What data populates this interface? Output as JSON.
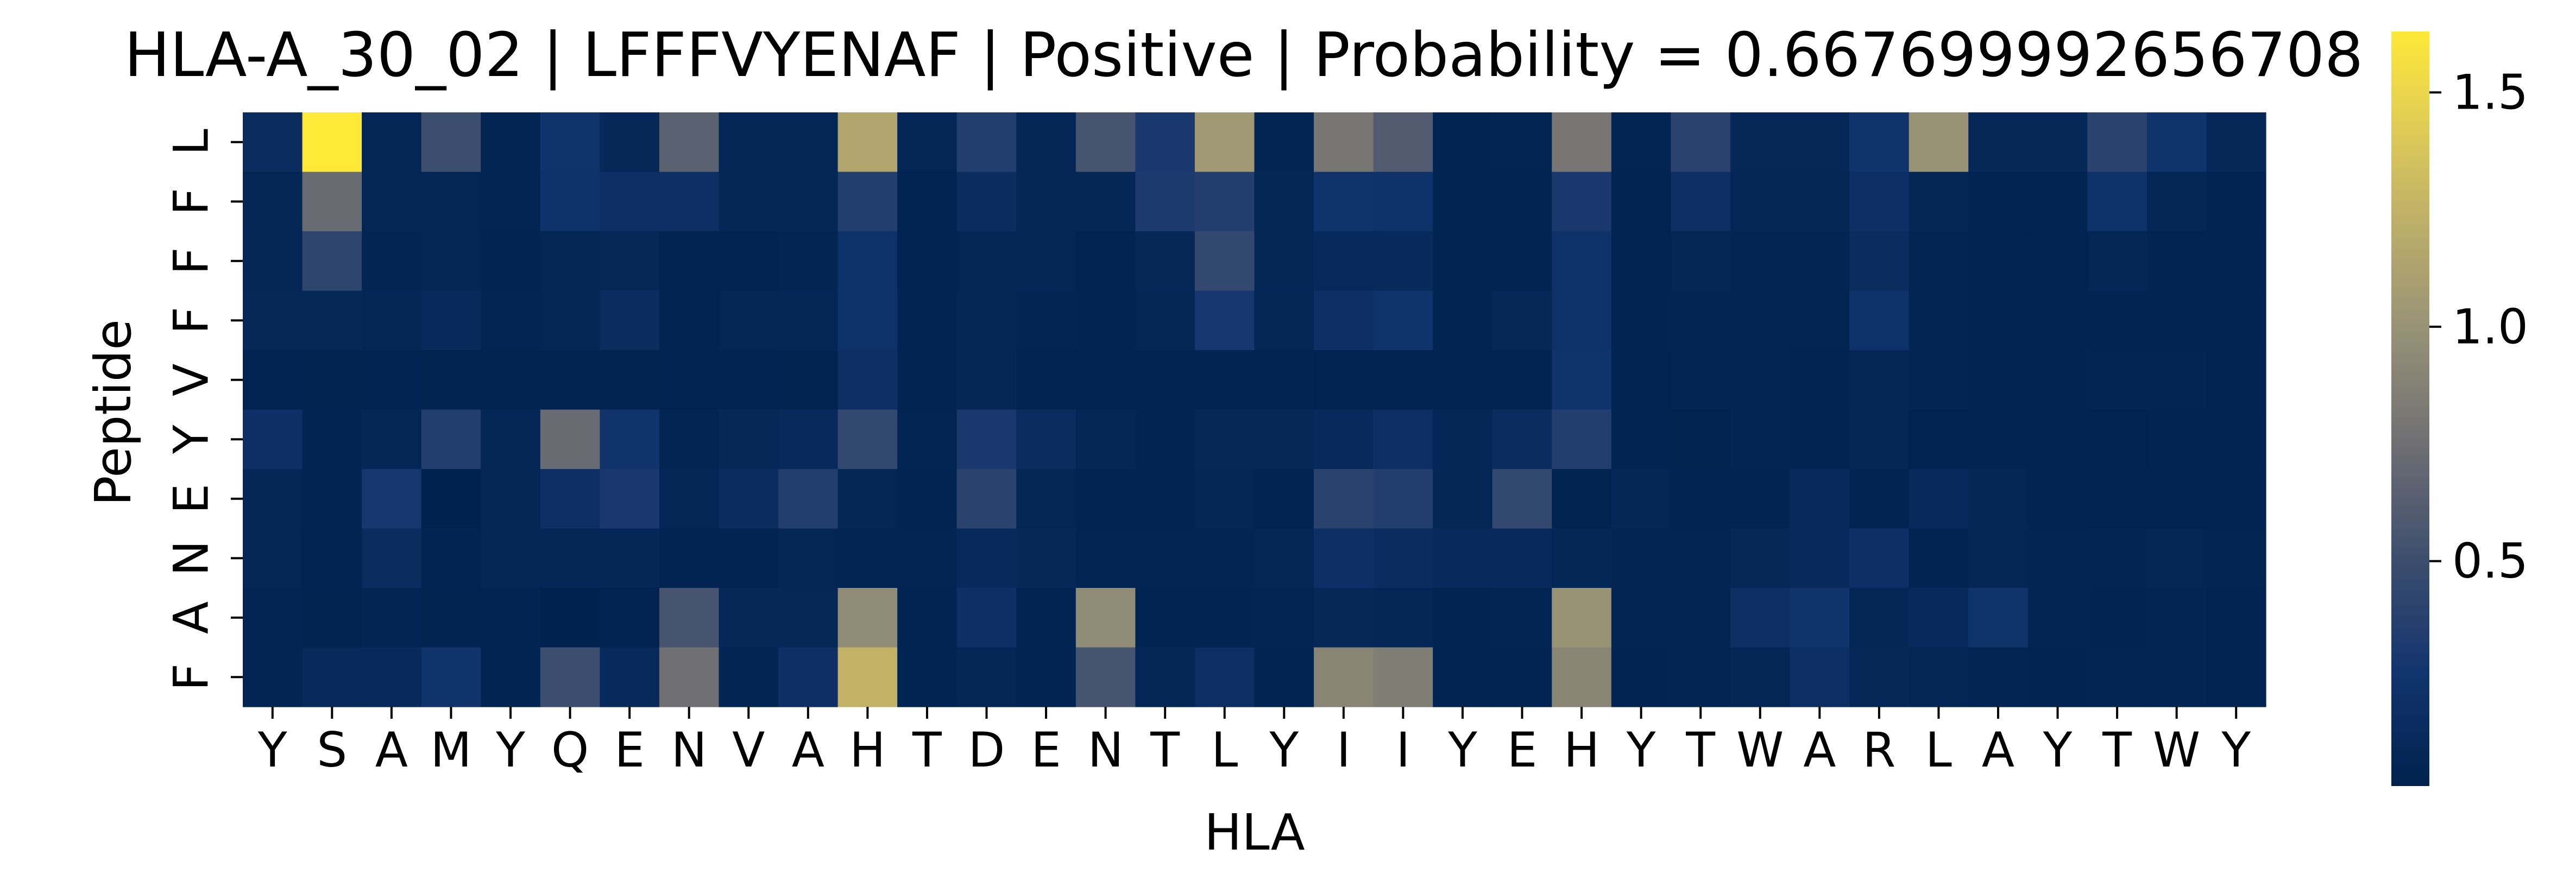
{
  "chart_data": {
    "type": "heatmap",
    "title": "HLA-A_30_02 | LFFFVYENAF | Positive | Probability = 0.667699992656708",
    "xlabel": "HLA",
    "ylabel": "Peptide",
    "x_categories": [
      "Y",
      "S",
      "A",
      "M",
      "Y",
      "Q",
      "E",
      "N",
      "V",
      "A",
      "H",
      "T",
      "D",
      "E",
      "N",
      "T",
      "L",
      "Y",
      "I",
      "I",
      "Y",
      "E",
      "H",
      "Y",
      "T",
      "W",
      "A",
      "R",
      "L",
      "A",
      "Y",
      "T",
      "W",
      "Y"
    ],
    "y_categories": [
      "L",
      "F",
      "F",
      "F",
      "V",
      "Y",
      "E",
      "N",
      "A",
      "F"
    ],
    "colorbar": {
      "colormap": "cividis",
      "vmin": 0.02,
      "vmax": 1.63,
      "ticks": [
        0.5,
        1.0,
        1.5
      ],
      "tick_labels": [
        "0.5",
        "1.0",
        "1.5"
      ]
    },
    "grid": false,
    "values": [
      [
        0.15,
        1.63,
        0.08,
        0.5,
        0.06,
        0.25,
        0.1,
        0.65,
        0.08,
        0.08,
        1.15,
        0.08,
        0.35,
        0.08,
        0.55,
        0.3,
        1.05,
        0.06,
        0.8,
        0.6,
        0.05,
        0.06,
        0.8,
        0.06,
        0.4,
        0.1,
        0.1,
        0.25,
        1.0,
        0.1,
        0.1,
        0.4,
        0.25,
        0.1
      ],
      [
        0.07,
        0.72,
        0.07,
        0.08,
        0.06,
        0.22,
        0.18,
        0.18,
        0.08,
        0.08,
        0.35,
        0.04,
        0.15,
        0.08,
        0.08,
        0.32,
        0.35,
        0.08,
        0.25,
        0.22,
        0.05,
        0.05,
        0.3,
        0.04,
        0.18,
        0.08,
        0.07,
        0.2,
        0.07,
        0.05,
        0.05,
        0.22,
        0.08,
        0.05
      ],
      [
        0.08,
        0.42,
        0.06,
        0.07,
        0.05,
        0.08,
        0.1,
        0.05,
        0.05,
        0.06,
        0.22,
        0.04,
        0.08,
        0.08,
        0.04,
        0.1,
        0.45,
        0.08,
        0.12,
        0.12,
        0.05,
        0.05,
        0.22,
        0.04,
        0.07,
        0.06,
        0.06,
        0.15,
        0.06,
        0.04,
        0.04,
        0.08,
        0.05,
        0.05
      ],
      [
        0.1,
        0.1,
        0.08,
        0.12,
        0.06,
        0.08,
        0.15,
        0.04,
        0.07,
        0.08,
        0.22,
        0.05,
        0.08,
        0.06,
        0.05,
        0.07,
        0.28,
        0.07,
        0.2,
        0.25,
        0.05,
        0.1,
        0.22,
        0.05,
        0.06,
        0.06,
        0.06,
        0.22,
        0.06,
        0.04,
        0.04,
        0.05,
        0.05,
        0.05
      ],
      [
        0.04,
        0.03,
        0.04,
        0.03,
        0.03,
        0.03,
        0.03,
        0.04,
        0.05,
        0.03,
        0.2,
        0.05,
        0.08,
        0.04,
        0.04,
        0.04,
        0.05,
        0.05,
        0.04,
        0.04,
        0.04,
        0.04,
        0.25,
        0.04,
        0.06,
        0.06,
        0.05,
        0.08,
        0.06,
        0.05,
        0.05,
        0.06,
        0.06,
        0.04
      ],
      [
        0.2,
        0.05,
        0.08,
        0.35,
        0.08,
        0.72,
        0.25,
        0.06,
        0.1,
        0.12,
        0.45,
        0.06,
        0.3,
        0.15,
        0.08,
        0.05,
        0.1,
        0.1,
        0.12,
        0.18,
        0.08,
        0.15,
        0.35,
        0.05,
        0.03,
        0.06,
        0.04,
        0.08,
        0.04,
        0.04,
        0.04,
        0.04,
        0.05,
        0.05
      ],
      [
        0.08,
        0.05,
        0.28,
        0.02,
        0.07,
        0.2,
        0.3,
        0.08,
        0.15,
        0.35,
        0.08,
        0.05,
        0.4,
        0.08,
        0.05,
        0.05,
        0.08,
        0.05,
        0.4,
        0.35,
        0.08,
        0.45,
        0.03,
        0.07,
        0.05,
        0.05,
        0.12,
        0.05,
        0.12,
        0.08,
        0.05,
        0.04,
        0.04,
        0.05
      ],
      [
        0.08,
        0.04,
        0.15,
        0.05,
        0.08,
        0.08,
        0.08,
        0.05,
        0.05,
        0.07,
        0.06,
        0.06,
        0.12,
        0.1,
        0.06,
        0.06,
        0.06,
        0.08,
        0.2,
        0.15,
        0.12,
        0.12,
        0.08,
        0.06,
        0.06,
        0.1,
        0.12,
        0.2,
        0.05,
        0.08,
        0.06,
        0.06,
        0.08,
        0.06
      ],
      [
        0.06,
        0.03,
        0.06,
        0.03,
        0.05,
        0.02,
        0.04,
        0.55,
        0.1,
        0.1,
        0.95,
        0.05,
        0.2,
        0.04,
        0.95,
        0.05,
        0.05,
        0.06,
        0.1,
        0.08,
        0.05,
        0.06,
        1.0,
        0.06,
        0.06,
        0.18,
        0.25,
        0.08,
        0.12,
        0.25,
        0.06,
        0.05,
        0.06,
        0.04
      ],
      [
        0.06,
        0.12,
        0.12,
        0.25,
        0.05,
        0.5,
        0.12,
        0.75,
        0.06,
        0.2,
        1.25,
        0.05,
        0.08,
        0.05,
        0.55,
        0.08,
        0.18,
        0.05,
        0.9,
        0.85,
        0.05,
        0.05,
        0.9,
        0.05,
        0.06,
        0.08,
        0.18,
        0.1,
        0.08,
        0.06,
        0.05,
        0.06,
        0.06,
        0.04
      ]
    ]
  }
}
